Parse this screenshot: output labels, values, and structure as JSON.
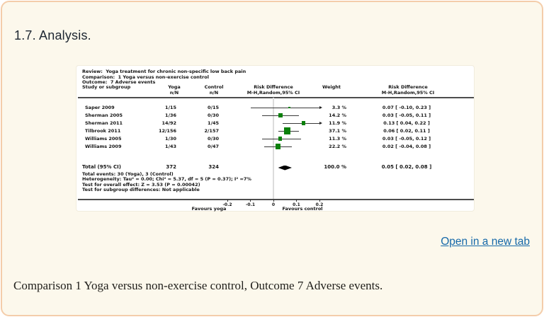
{
  "page": {
    "heading": "1.7. Analysis.",
    "link_label": "Open in a new tab",
    "caption": "Comparison 1 Yoga versus non-exercise control, Outcome 7 Adverse events.",
    "colors": {
      "background": "#fcf8ec",
      "border": "#f4cdaa",
      "link": "#1669a9"
    }
  },
  "chart_data": {
    "type": "forest",
    "meta": {
      "review": "Review:  Yoga treatment for chronic non-specific low back pain",
      "comparison": "Comparison:  1 Yoga versus non-exercise control",
      "outcome": "Outcome:  7 Adverse events"
    },
    "headers": {
      "study": "Study or subgroup",
      "group1": "Yoga",
      "group1_sub": "n/N",
      "group2": "Control",
      "group2_sub": "n/N",
      "graph_title": "Risk Difference",
      "graph_sub": "M-H,Random,95% CI",
      "weight": "Weight",
      "effect_title": "Risk Difference",
      "effect_sub": "M-H,Random,95% CI"
    },
    "studies": [
      {
        "name": "Saper 2009",
        "yoga": "1/15",
        "control": "0/15",
        "weight": "3.3 %",
        "weight_pct": 3.3,
        "rd": 0.07,
        "ci_low": -0.1,
        "ci_high": 0.23,
        "effect": "0.07 [ -0.10, 0.23 ]"
      },
      {
        "name": "Sherman 2005",
        "yoga": "1/36",
        "control": "0/30",
        "weight": "14.2 %",
        "weight_pct": 14.2,
        "rd": 0.03,
        "ci_low": -0.05,
        "ci_high": 0.11,
        "effect": "0.03 [ -0.05, 0.11 ]"
      },
      {
        "name": "Sherman 2011",
        "yoga": "14/92",
        "control": "1/45",
        "weight": "11.9 %",
        "weight_pct": 11.9,
        "rd": 0.13,
        "ci_low": 0.04,
        "ci_high": 0.22,
        "effect": "0.13 [ 0.04, 0.22 ]"
      },
      {
        "name": "Tilbrook 2011",
        "yoga": "12/156",
        "control": "2/157",
        "weight": "37.1 %",
        "weight_pct": 37.1,
        "rd": 0.06,
        "ci_low": 0.02,
        "ci_high": 0.11,
        "effect": "0.06 [ 0.02, 0.11 ]"
      },
      {
        "name": "Williams 2005",
        "yoga": "1/30",
        "control": "0/30",
        "weight": "11.3 %",
        "weight_pct": 11.3,
        "rd": 0.03,
        "ci_low": -0.05,
        "ci_high": 0.12,
        "effect": "0.03 [ -0.05, 0.12 ]"
      },
      {
        "name": "Williams 2009",
        "yoga": "1/43",
        "control": "0/47",
        "weight": "22.2 %",
        "weight_pct": 22.2,
        "rd": 0.02,
        "ci_low": -0.04,
        "ci_high": 0.08,
        "effect": "0.02 [ -0.04, 0.08 ]"
      }
    ],
    "total": {
      "label": "Total (95% CI)",
      "yoga": "372",
      "control": "324",
      "weight": "100.0 %",
      "rd": 0.05,
      "ci_low": 0.02,
      "ci_high": 0.08,
      "effect": "0.05 [ 0.02, 0.08 ]"
    },
    "footnotes": [
      "Total events: 30 (Yoga), 3 (Control)",
      "Heterogeneity: Tau² = 0.00; Chi² = 5.37, df = 5 (P = 0.37); I² =7%",
      "Test for overall effect: Z = 3.53 (P = 0.00042)",
      "Test for subgroup differences: Not applicable"
    ],
    "axis": {
      "xlim": [
        -0.2,
        0.2
      ],
      "ticks": [
        -0.2,
        -0.1,
        0,
        0.1,
        0.2
      ],
      "tick_labels": [
        "-0.2",
        "-0.1",
        "0",
        "0.1",
        "0.2"
      ],
      "left_label": "Favours yoga",
      "right_label": "Favours control"
    },
    "marker_color": "#0b800b"
  }
}
